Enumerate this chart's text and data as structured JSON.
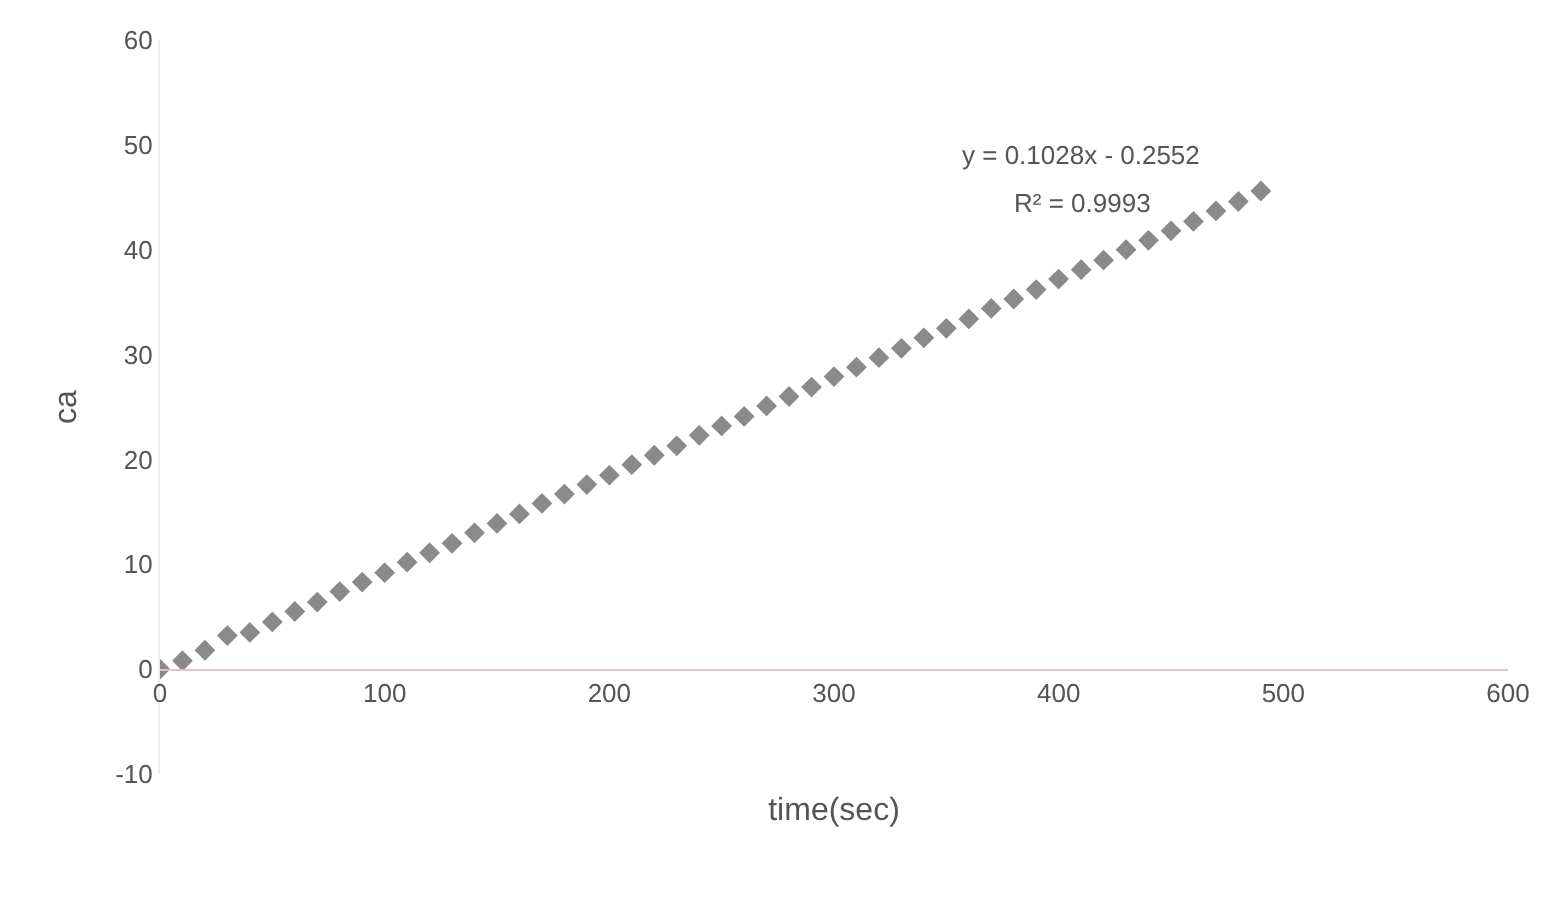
{
  "chart_data": {
    "type": "scatter",
    "xlabel": "time(sec)",
    "ylabel": "ca",
    "x": [
      0,
      10,
      20,
      30,
      40,
      50,
      60,
      70,
      80,
      90,
      100,
      110,
      120,
      130,
      140,
      150,
      160,
      170,
      180,
      190,
      200,
      210,
      220,
      230,
      240,
      250,
      260,
      270,
      280,
      290,
      300,
      310,
      320,
      330,
      340,
      350,
      360,
      370,
      380,
      390,
      400,
      410,
      420,
      430,
      440,
      450,
      460,
      470,
      480,
      490
    ],
    "series": [
      {
        "color": "#8a8a8a",
        "values": [
          0,
          0.8,
          1.8,
          3.2,
          3.5,
          4.5,
          5.5,
          6.4,
          7.4,
          8.3,
          9.2,
          10.2,
          11.1,
          12,
          13,
          13.9,
          14.8,
          15.8,
          16.7,
          17.6,
          18.5,
          19.5,
          20.4,
          21.3,
          22.3,
          23.2,
          24.1,
          25.1,
          26,
          26.9,
          27.9,
          28.8,
          29.7,
          30.6,
          31.6,
          32.5,
          33.4,
          34.4,
          35.3,
          36.2,
          37.2,
          38.1,
          39,
          40,
          40.9,
          41.8,
          42.7,
          43.7,
          44.6,
          45.6
        ]
      }
    ],
    "xlim": [
      0,
      600
    ],
    "xticks": [
      0,
      100,
      200,
      300,
      400,
      500,
      600
    ],
    "ylim": [
      -10,
      60
    ],
    "yticks": [
      -10,
      0,
      10,
      20,
      30,
      40,
      50,
      60
    ],
    "annotations": [
      "y = 0.1028x - 0.2552",
      "R² = 0.9993"
    ],
    "marker": "diamond",
    "grid": false
  }
}
